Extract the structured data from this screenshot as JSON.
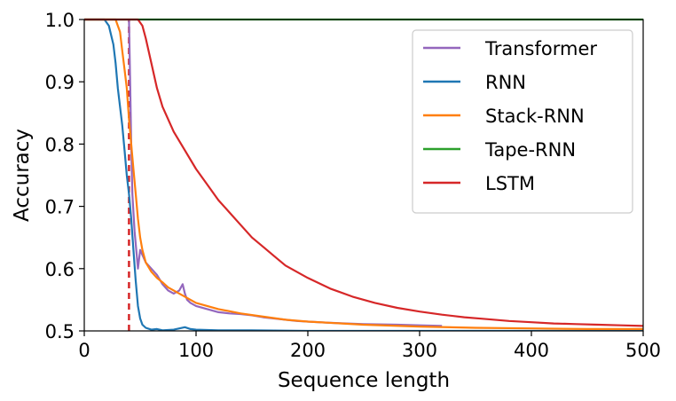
{
  "chart_data": {
    "type": "line",
    "xlabel": "Sequence length",
    "ylabel": "Accuracy",
    "xlim": [
      0,
      500
    ],
    "ylim": [
      0.5,
      1.0
    ],
    "xticks": [
      "0",
      "100",
      "200",
      "300",
      "400",
      "500"
    ],
    "yticks": [
      "0.5",
      "0.6",
      "0.7",
      "0.8",
      "0.9",
      "1.0"
    ],
    "grid": false,
    "legend_position": "top-right",
    "reference_line": {
      "x": 40,
      "color": "#d62728",
      "style": "dashed"
    },
    "series": [
      {
        "name": "Transformer",
        "color": "#9467bd",
        "points": [
          [
            40,
            1.0
          ],
          [
            41,
            0.9
          ],
          [
            42,
            0.8
          ],
          [
            43,
            0.72
          ],
          [
            45,
            0.66
          ],
          [
            48,
            0.6
          ],
          [
            50,
            0.63
          ],
          [
            55,
            0.61
          ],
          [
            60,
            0.6
          ],
          [
            65,
            0.59
          ],
          [
            70,
            0.575
          ],
          [
            75,
            0.565
          ],
          [
            80,
            0.56
          ],
          [
            85,
            0.565
          ],
          [
            88,
            0.575
          ],
          [
            90,
            0.56
          ],
          [
            92,
            0.55
          ],
          [
            95,
            0.545
          ],
          [
            100,
            0.54
          ],
          [
            110,
            0.535
          ],
          [
            120,
            0.53
          ],
          [
            130,
            0.528
          ],
          [
            140,
            0.527
          ],
          [
            150,
            0.525
          ],
          [
            160,
            0.522
          ],
          [
            170,
            0.52
          ],
          [
            180,
            0.518
          ],
          [
            190,
            0.516
          ],
          [
            200,
            0.515
          ],
          [
            220,
            0.513
          ],
          [
            250,
            0.511
          ],
          [
            280,
            0.51
          ],
          [
            300,
            0.509
          ],
          [
            320,
            0.508
          ]
        ]
      },
      {
        "name": "RNN",
        "color": "#1f77b4",
        "points": [
          [
            0,
            1.0
          ],
          [
            18,
            1.0
          ],
          [
            22,
            0.99
          ],
          [
            26,
            0.96
          ],
          [
            28,
            0.93
          ],
          [
            30,
            0.89
          ],
          [
            32,
            0.86
          ],
          [
            34,
            0.83
          ],
          [
            36,
            0.79
          ],
          [
            38,
            0.75
          ],
          [
            40,
            0.72
          ],
          [
            42,
            0.68
          ],
          [
            44,
            0.63
          ],
          [
            46,
            0.58
          ],
          [
            48,
            0.54
          ],
          [
            50,
            0.52
          ],
          [
            52,
            0.51
          ],
          [
            55,
            0.505
          ],
          [
            60,
            0.502
          ],
          [
            65,
            0.503
          ],
          [
            70,
            0.501
          ],
          [
            80,
            0.502
          ],
          [
            90,
            0.506
          ],
          [
            95,
            0.503
          ],
          [
            100,
            0.502
          ],
          [
            120,
            0.501
          ],
          [
            150,
            0.501
          ],
          [
            200,
            0.5
          ],
          [
            300,
            0.5
          ],
          [
            500,
            0.5
          ]
        ]
      },
      {
        "name": "Stack-RNN",
        "color": "#ff7f0e",
        "points": [
          [
            0,
            1.0
          ],
          [
            28,
            1.0
          ],
          [
            32,
            0.98
          ],
          [
            34,
            0.95
          ],
          [
            36,
            0.92
          ],
          [
            38,
            0.89
          ],
          [
            40,
            0.84
          ],
          [
            42,
            0.8
          ],
          [
            44,
            0.76
          ],
          [
            46,
            0.72
          ],
          [
            48,
            0.68
          ],
          [
            50,
            0.65
          ],
          [
            52,
            0.63
          ],
          [
            55,
            0.61
          ],
          [
            60,
            0.595
          ],
          [
            65,
            0.585
          ],
          [
            70,
            0.578
          ],
          [
            75,
            0.57
          ],
          [
            80,
            0.565
          ],
          [
            85,
            0.56
          ],
          [
            90,
            0.555
          ],
          [
            95,
            0.55
          ],
          [
            100,
            0.545
          ],
          [
            110,
            0.54
          ],
          [
            120,
            0.535
          ],
          [
            140,
            0.528
          ],
          [
            160,
            0.523
          ],
          [
            180,
            0.518
          ],
          [
            200,
            0.515
          ],
          [
            250,
            0.51
          ],
          [
            300,
            0.507
          ],
          [
            350,
            0.505
          ],
          [
            400,
            0.504
          ],
          [
            450,
            0.503
          ],
          [
            500,
            0.503
          ]
        ]
      },
      {
        "name": "Tape-RNN",
        "color": "#2ca02c",
        "points": [
          [
            0,
            1.0
          ],
          [
            500,
            1.0
          ]
        ]
      },
      {
        "name": "LSTM",
        "color": "#d62728",
        "points": [
          [
            0,
            1.0
          ],
          [
            48,
            1.0
          ],
          [
            52,
            0.99
          ],
          [
            55,
            0.97
          ],
          [
            60,
            0.93
          ],
          [
            65,
            0.89
          ],
          [
            70,
            0.86
          ],
          [
            80,
            0.82
          ],
          [
            90,
            0.79
          ],
          [
            100,
            0.76
          ],
          [
            110,
            0.735
          ],
          [
            120,
            0.71
          ],
          [
            130,
            0.69
          ],
          [
            140,
            0.67
          ],
          [
            150,
            0.65
          ],
          [
            160,
            0.635
          ],
          [
            170,
            0.62
          ],
          [
            180,
            0.605
          ],
          [
            190,
            0.595
          ],
          [
            200,
            0.585
          ],
          [
            220,
            0.568
          ],
          [
            240,
            0.555
          ],
          [
            260,
            0.545
          ],
          [
            280,
            0.537
          ],
          [
            300,
            0.531
          ],
          [
            320,
            0.526
          ],
          [
            340,
            0.522
          ],
          [
            360,
            0.519
          ],
          [
            380,
            0.516
          ],
          [
            400,
            0.514
          ],
          [
            420,
            0.512
          ],
          [
            440,
            0.511
          ],
          [
            460,
            0.51
          ],
          [
            480,
            0.509
          ],
          [
            500,
            0.508
          ]
        ]
      }
    ]
  }
}
